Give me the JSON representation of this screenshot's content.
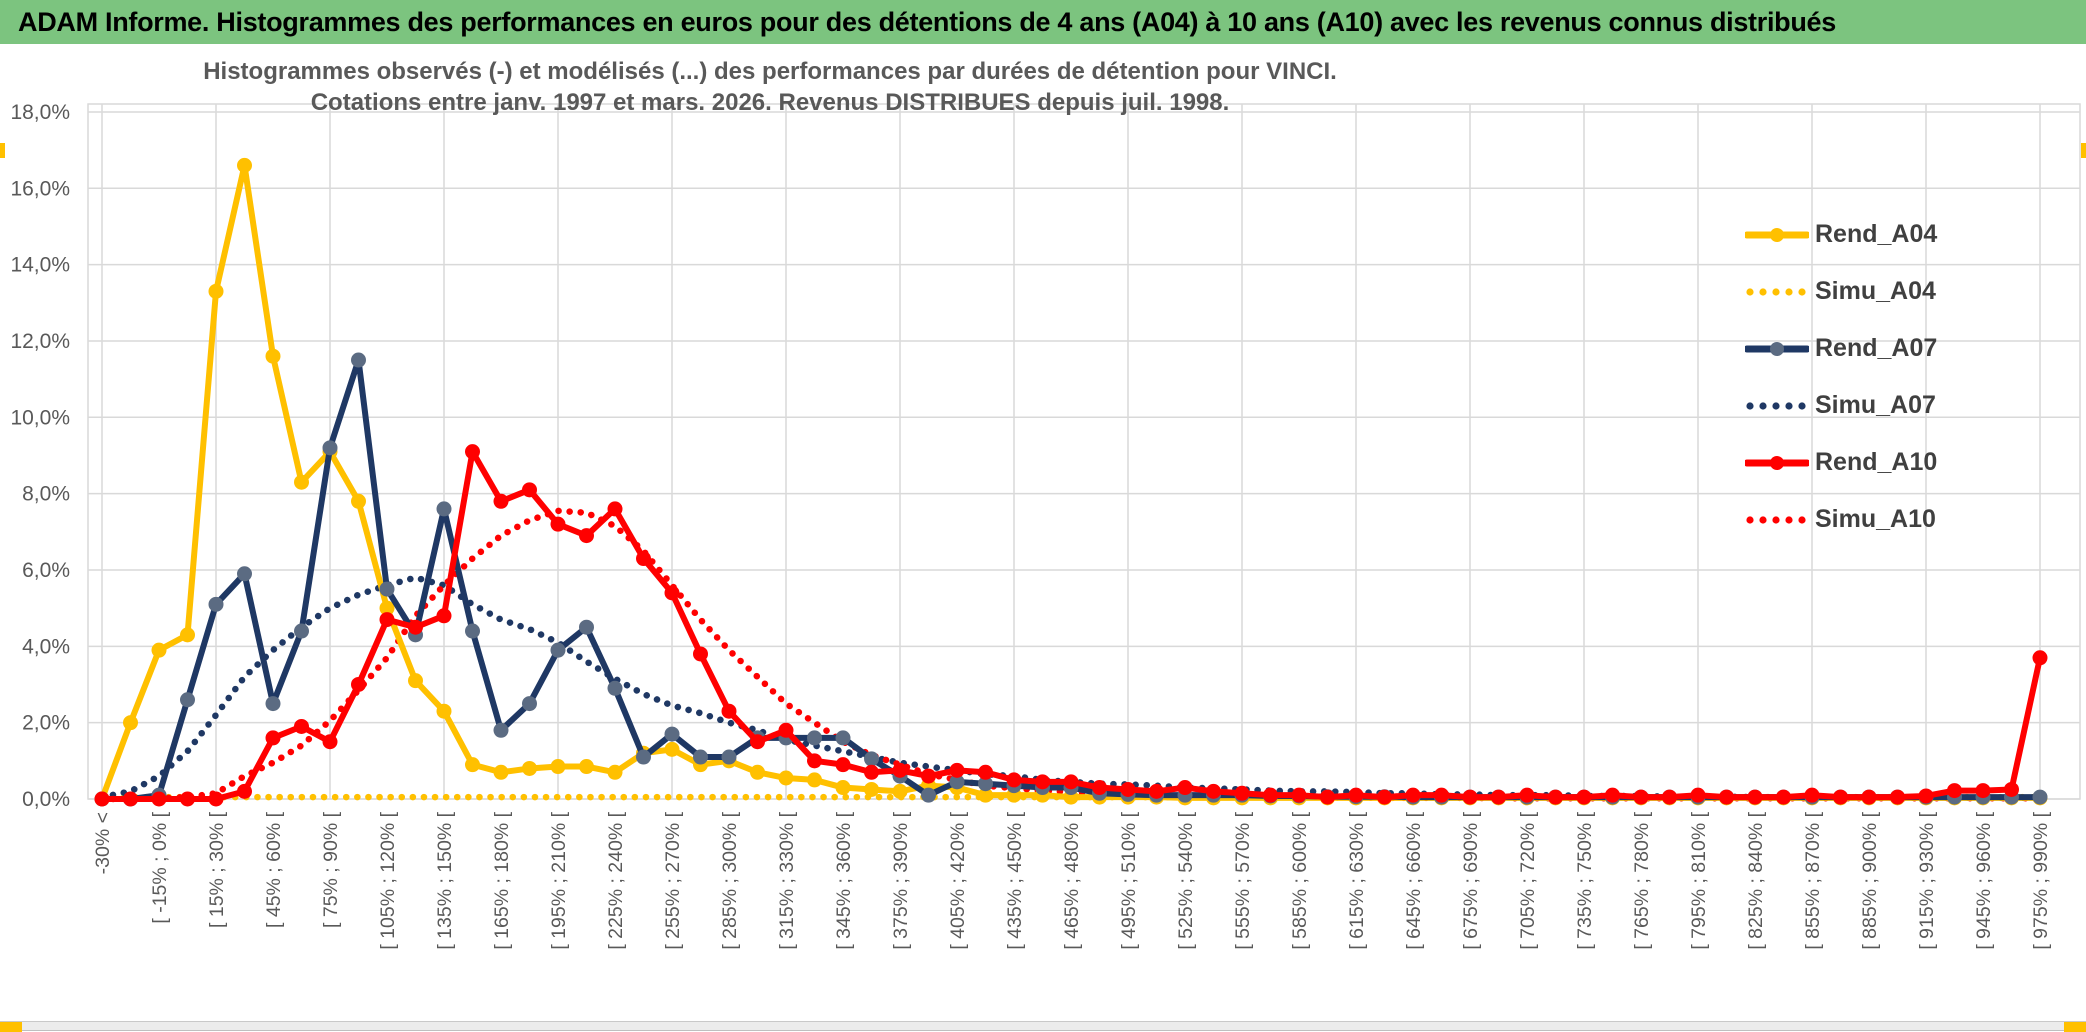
{
  "header": {
    "title": "ADAM Informe. Histogrammes des performances en euros pour des détentions de 4 ans (A04) à 10 ans (A10) avec les revenus connus distribués"
  },
  "chart_title": {
    "line1": "Histogrammes observés (-) et modélisés (...) des performances par durées de détention pour VINCI.",
    "line2": "Cotations entre janv. 1997 et mars. 2026. Revenus DISTRIBUES depuis juil. 1998."
  },
  "colors": {
    "header_green": "#7CC47F",
    "gold": "#FFC000",
    "navy": "#1F3864",
    "red": "#FF0000",
    "navy_marker": "#5B6B82",
    "grid": "#D9D9D9",
    "axis_text": "#595959",
    "legend_text": "#404040",
    "frame_accent": "#FFC000"
  },
  "chart_data": {
    "type": "line",
    "title": "Histogrammes observés (-) et modélisés (...) des performances par durées de détention pour VINCI. Cotations entre janv. 1997 et mars. 2026. Revenus DISTRIBUES depuis juil. 1998.",
    "ylabel": "",
    "xlabel": "",
    "ylim": [
      0,
      18
    ],
    "grid": true,
    "legend_position": "right",
    "y_ticks": [
      "0,0%",
      "2,0%",
      "4,0%",
      "6,0%",
      "8,0%",
      "10,0%",
      "12,0%",
      "14,0%",
      "16,0%",
      "18,0%"
    ],
    "x_label_every": 2,
    "categories": [
      "-30% <",
      "",
      "[ -15% ; 0% [",
      "",
      "[ 15% ; 30% [",
      "",
      "[ 45% ; 60% [",
      "",
      "[ 75% ; 90% [",
      "",
      "[ 105% ; 120% [",
      "",
      "[ 135% ; 150% [",
      "",
      "[ 165% ; 180% [",
      "",
      "[ 195% ; 210% [",
      "",
      "[ 225% ; 240% [",
      "",
      "[ 255% ; 270% [",
      "",
      "[ 285% ; 300% [",
      "",
      "[ 315% ; 330% [",
      "",
      "[ 345% ; 360% [",
      "",
      "[ 375% ; 390% [",
      "",
      "[ 405% ; 420% [",
      "",
      "[ 435% ; 450% [",
      "",
      "[ 465% ; 480% [",
      "",
      "[ 495% ; 510% [",
      "",
      "[ 525% ; 540% [",
      "",
      "[ 555% ; 570% [",
      "",
      "[ 585% ; 600% [",
      "",
      "[ 615% ; 630% [",
      "",
      "[ 645% ; 660% [",
      "",
      "[ 675% ; 690% [",
      "",
      "[ 705% ; 720% [",
      "",
      "[ 735% ; 750% [",
      "",
      "[ 765% ; 780% [",
      "",
      "[ 795% ; 810% [",
      "",
      "[ 825% ; 840% [",
      "",
      "[ 855% ; 870% [",
      "",
      "[ 885% ; 900% [",
      "",
      "[ 915% ; 930% [",
      "",
      "[ 945% ; 960% [",
      "",
      "[ 975% ; 990% ["
    ],
    "series": [
      {
        "name": "Simu_A04",
        "color": "#FFC000",
        "style": "dotted",
        "marker": false,
        "values": [
          0.05,
          0.05,
          0.05,
          0.05,
          0.05,
          0.05,
          0.05,
          0.05,
          0.05,
          0.05,
          0.05,
          0.05,
          0.05,
          0.05,
          0.05,
          0.05,
          0.05,
          0.05,
          0.05,
          0.05,
          0.05,
          0.05,
          0.05,
          0.05,
          0.05,
          0.05,
          0.05,
          0.05,
          0.05,
          0.05,
          0.05,
          0.05,
          0.05,
          0.05,
          0.05,
          0.05,
          0.05,
          0.05,
          0.05,
          0.05,
          0.05,
          0.05,
          0.05,
          0.05,
          0.05,
          0.05,
          0.05,
          0.05,
          0.05,
          0.05,
          0.05,
          0.05,
          0.05,
          0.05,
          0.05,
          0.05,
          0.05,
          0.05,
          0.05,
          0.05,
          0.05,
          0.05,
          0.05,
          0.05,
          0.05,
          0.05,
          0.05,
          0.05,
          0.05
        ]
      },
      {
        "name": "Simu_A07",
        "color": "#1F3864",
        "style": "dotted",
        "marker": false,
        "values": [
          0.05,
          0.2,
          0.6,
          1.25,
          2.2,
          3.2,
          3.9,
          4.5,
          5.0,
          5.35,
          5.6,
          5.8,
          5.6,
          5.1,
          4.7,
          4.45,
          4.1,
          3.6,
          3.15,
          2.75,
          2.45,
          2.25,
          2.0,
          1.8,
          1.55,
          1.4,
          1.25,
          1.1,
          0.95,
          0.85,
          0.75,
          0.65,
          0.6,
          0.5,
          0.45,
          0.4,
          0.38,
          0.35,
          0.3,
          0.28,
          0.25,
          0.22,
          0.2,
          0.2,
          0.18,
          0.15,
          0.15,
          0.12,
          0.12,
          0.1,
          0.1,
          0.1,
          0.08,
          0.08,
          0.08,
          0.06,
          0.06,
          0.06,
          0.05,
          0.05,
          0.05,
          0.05,
          0.04,
          0.04,
          0.04,
          0.04,
          0.03,
          0.03,
          0.03
        ]
      },
      {
        "name": "Simu_A10",
        "color": "#FF0000",
        "style": "dotted",
        "marker": false,
        "values": [
          0,
          0,
          0.02,
          0.05,
          0.15,
          0.6,
          0.95,
          1.4,
          2.05,
          2.85,
          3.7,
          4.8,
          5.6,
          6.3,
          6.9,
          7.3,
          7.55,
          7.5,
          7.15,
          6.5,
          5.6,
          4.7,
          3.9,
          3.2,
          2.5,
          2.0,
          1.5,
          1.15,
          0.9,
          0.65,
          0.5,
          0.35,
          0.28,
          0.22,
          0.18,
          0.15,
          0.12,
          0.1,
          0.08,
          0.07,
          0.06,
          0.05,
          0.05,
          0.04,
          0.04,
          0.03,
          0.03,
          0.03,
          0.03,
          0.02,
          0.02,
          0.02,
          0.02,
          0.02,
          0.02,
          0.02,
          0.02,
          0.02,
          0.02,
          0.02,
          0.02,
          0.02,
          0.02,
          0.02,
          0.02,
          0.02,
          0.02,
          0.02,
          0.02
        ]
      },
      {
        "name": "Rend_A04",
        "color": "#FFC000",
        "style": "solid",
        "marker": true,
        "marker_color": "#FFC000",
        "values": [
          0,
          2.0,
          3.9,
          4.3,
          13.3,
          16.6,
          11.6,
          8.3,
          9.1,
          7.8,
          5.0,
          3.1,
          2.3,
          0.9,
          0.7,
          0.8,
          0.85,
          0.85,
          0.7,
          1.2,
          1.3,
          0.9,
          1.0,
          0.7,
          0.55,
          0.5,
          0.3,
          0.25,
          0.2,
          0.35,
          0.3,
          0.1,
          0.1,
          0.1,
          0.05,
          0.05,
          0.05,
          0.05,
          0.03,
          0.03,
          0.03,
          0.03,
          0.03,
          0.03,
          0.03,
          0.03,
          0.03,
          0.03,
          0.03,
          0.03,
          0.03,
          0.03,
          0.03,
          0.03,
          0.03,
          0.03,
          0.03,
          0.03,
          0.03,
          0.03,
          0.03,
          0.03,
          0.03,
          0.03,
          0.03,
          0.03,
          0.03,
          0.03,
          0.03
        ]
      },
      {
        "name": "Rend_A07",
        "color": "#1F3864",
        "style": "solid",
        "marker": true,
        "marker_color": "#5B6B82",
        "values": [
          0,
          0,
          0.1,
          2.6,
          5.1,
          5.9,
          2.5,
          4.4,
          9.2,
          11.5,
          5.5,
          4.3,
          7.6,
          4.4,
          1.8,
          2.5,
          3.9,
          4.5,
          2.9,
          1.1,
          1.7,
          1.1,
          1.1,
          1.6,
          1.6,
          1.6,
          1.6,
          1.05,
          0.6,
          0.1,
          0.45,
          0.4,
          0.35,
          0.3,
          0.3,
          0.15,
          0.12,
          0.1,
          0.1,
          0.1,
          0.1,
          0.08,
          0.08,
          0.06,
          0.06,
          0.06,
          0.05,
          0.05,
          0.05,
          0.05,
          0.05,
          0.05,
          0.05,
          0.05,
          0.05,
          0.05,
          0.05,
          0.05,
          0.05,
          0.05,
          0.05,
          0.05,
          0.05,
          0.05,
          0.05,
          0.05,
          0.05,
          0.05,
          0.05
        ]
      },
      {
        "name": "Rend_A10",
        "color": "#FF0000",
        "style": "solid",
        "marker": true,
        "marker_color": "#FF0000",
        "values": [
          0,
          0,
          0,
          0,
          0,
          0.2,
          1.6,
          1.9,
          1.5,
          3.0,
          4.7,
          4.5,
          4.8,
          9.1,
          7.8,
          8.1,
          7.2,
          6.9,
          7.6,
          6.3,
          5.4,
          3.8,
          2.3,
          1.5,
          1.8,
          1.0,
          0.9,
          0.7,
          0.75,
          0.6,
          0.75,
          0.7,
          0.5,
          0.45,
          0.45,
          0.3,
          0.25,
          0.2,
          0.3,
          0.2,
          0.15,
          0.1,
          0.1,
          0.05,
          0.1,
          0.05,
          0.1,
          0.1,
          0.05,
          0.05,
          0.1,
          0.05,
          0.05,
          0.1,
          0.05,
          0.05,
          0.1,
          0.05,
          0.05,
          0.05,
          0.1,
          0.05,
          0.05,
          0.05,
          0.08,
          0.22,
          0.22,
          0.25,
          3.7
        ]
      }
    ],
    "legend_order": [
      "Rend_A04",
      "Simu_A04",
      "Rend_A07",
      "Simu_A07",
      "Rend_A10",
      "Simu_A10"
    ]
  }
}
